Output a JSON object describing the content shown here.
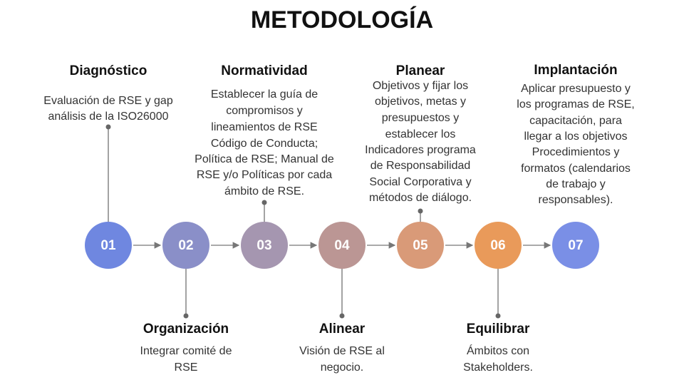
{
  "header": {
    "title": "METODOLOGÍA"
  },
  "steps": [
    {
      "number": "01",
      "title": "Diagnóstico",
      "description": [
        "Evaluación de RSE y gap",
        "análisis de la ISO26000"
      ]
    },
    {
      "number": "02",
      "title": "Organización",
      "description": [
        "Integrar comité de",
        "RSE"
      ]
    },
    {
      "number": "03",
      "title": "Normatividad",
      "description": [
        "Establecer la guía de",
        "compromisos y",
        "lineamientos de RSE",
        "Código de Conducta;",
        "Política de RSE; Manual de",
        "RSE y/o Políticas por cada",
        "ámbito de RSE."
      ]
    },
    {
      "number": "04",
      "title": "Alinear",
      "description": [
        "Visión de RSE al",
        "negocio."
      ]
    },
    {
      "number": "05",
      "title": "Planear",
      "description": [
        "Objetivos y fijar los",
        "objetivos, metas y",
        "presupuestos y",
        "establecer los",
        "Indicadores programa",
        "de Responsabilidad",
        "Social Corporativa y",
        "métodos de diálogo."
      ]
    },
    {
      "number": "06",
      "title": "Equilibrar",
      "description": [
        "Ámbitos con",
        "Stakeholders."
      ]
    },
    {
      "number": "07",
      "title": "Implantación",
      "description": [
        "Aplicar presupuesto y",
        "los programas de RSE,",
        "capacitación, para",
        "llegar a los objetivos",
        "Procedimientos y",
        "formatos (calendarios",
        "de trabajo y",
        "responsables)."
      ]
    }
  ]
}
